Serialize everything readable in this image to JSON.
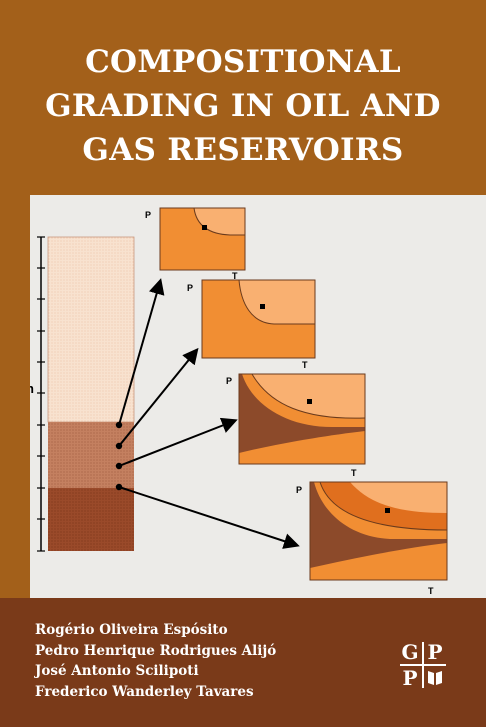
{
  "title": {
    "lines": [
      "COMPOSITIONAL",
      "GRADING IN OIL AND",
      "GAS RESERVOIRS"
    ]
  },
  "figure": {
    "column_axis_label": "h",
    "diagram_axis_pressure": "P",
    "diagram_axis_temperature": "T",
    "colors": {
      "upper_zone": "#f8e2cf",
      "middle_zone": "#c48060",
      "lower_zone": "#9a4a2a",
      "phase_light": "#f9b071",
      "phase_medium": "#f18e33",
      "phase_dark": "#e06f1e",
      "phase_brown": "#8c4a2a"
    }
  },
  "authors": [
    "Rogério Oliveira Espósito",
    "Pedro Henrique Rodrigues Alijó",
    "José Antonio Scilipoti",
    "Frederico Wanderley Tavares"
  ],
  "publisher_logo": {
    "letters": [
      "G",
      "P",
      "P"
    ],
    "icon": "book-icon"
  }
}
